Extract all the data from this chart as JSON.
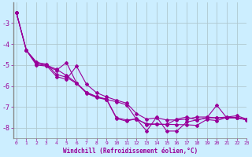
{
  "xlabel": "Windchill (Refroidissement éolien,°C)",
  "background_color": "#cceeff",
  "grid_color": "#b0c8d0",
  "line_color": "#990099",
  "spine_color": "#888888",
  "x": [
    0,
    1,
    2,
    3,
    4,
    5,
    6,
    7,
    8,
    9,
    10,
    11,
    12,
    13,
    14,
    15,
    16,
    17,
    18,
    19,
    20,
    21,
    22,
    23
  ],
  "series": [
    [
      -2.5,
      -4.3,
      -4.85,
      -5.0,
      -5.2,
      -5.5,
      -5.85,
      -6.3,
      -6.5,
      -6.65,
      -6.75,
      -6.9,
      -7.6,
      -7.8,
      -7.82,
      -7.83,
      -7.84,
      -7.85,
      -7.88,
      -7.6,
      -7.65,
      -7.5,
      -7.5,
      -7.62
    ],
    [
      -2.5,
      -4.3,
      -5.0,
      -5.05,
      -5.25,
      -4.88,
      -5.85,
      -6.35,
      -6.55,
      -6.65,
      -7.55,
      -7.68,
      -7.55,
      -7.85,
      -7.82,
      -7.84,
      -7.58,
      -7.48,
      -7.62,
      -7.52,
      -6.92,
      -7.52,
      -7.52,
      -7.62
    ],
    [
      -2.5,
      -4.3,
      -4.95,
      -5.02,
      -5.55,
      -5.68,
      -5.05,
      -5.92,
      -6.32,
      -6.52,
      -6.68,
      -6.82,
      -7.32,
      -7.58,
      -7.52,
      -7.62,
      -7.62,
      -7.58,
      -7.48,
      -7.48,
      -7.52,
      -7.48,
      -7.42,
      -7.58
    ],
    [
      -2.5,
      -4.3,
      -4.9,
      -4.95,
      -5.45,
      -5.58,
      -5.88,
      -6.32,
      -6.52,
      -6.62,
      -7.52,
      -7.62,
      -7.58,
      -8.15,
      -7.48,
      -8.15,
      -8.15,
      -7.72,
      -7.62,
      -7.52,
      -7.52,
      -7.52,
      -7.52,
      -7.6
    ]
  ],
  "ylim": [
    -8.5,
    -2.0
  ],
  "xlim": [
    -0.3,
    23
  ],
  "yticks": [
    -8,
    -7,
    -6,
    -5,
    -4,
    -3
  ],
  "xticks": [
    0,
    1,
    2,
    3,
    4,
    5,
    6,
    7,
    8,
    9,
    10,
    11,
    12,
    13,
    14,
    15,
    16,
    17,
    18,
    19,
    20,
    21,
    22,
    23
  ],
  "marker": "D",
  "markersize": 2,
  "linewidth": 0.8
}
